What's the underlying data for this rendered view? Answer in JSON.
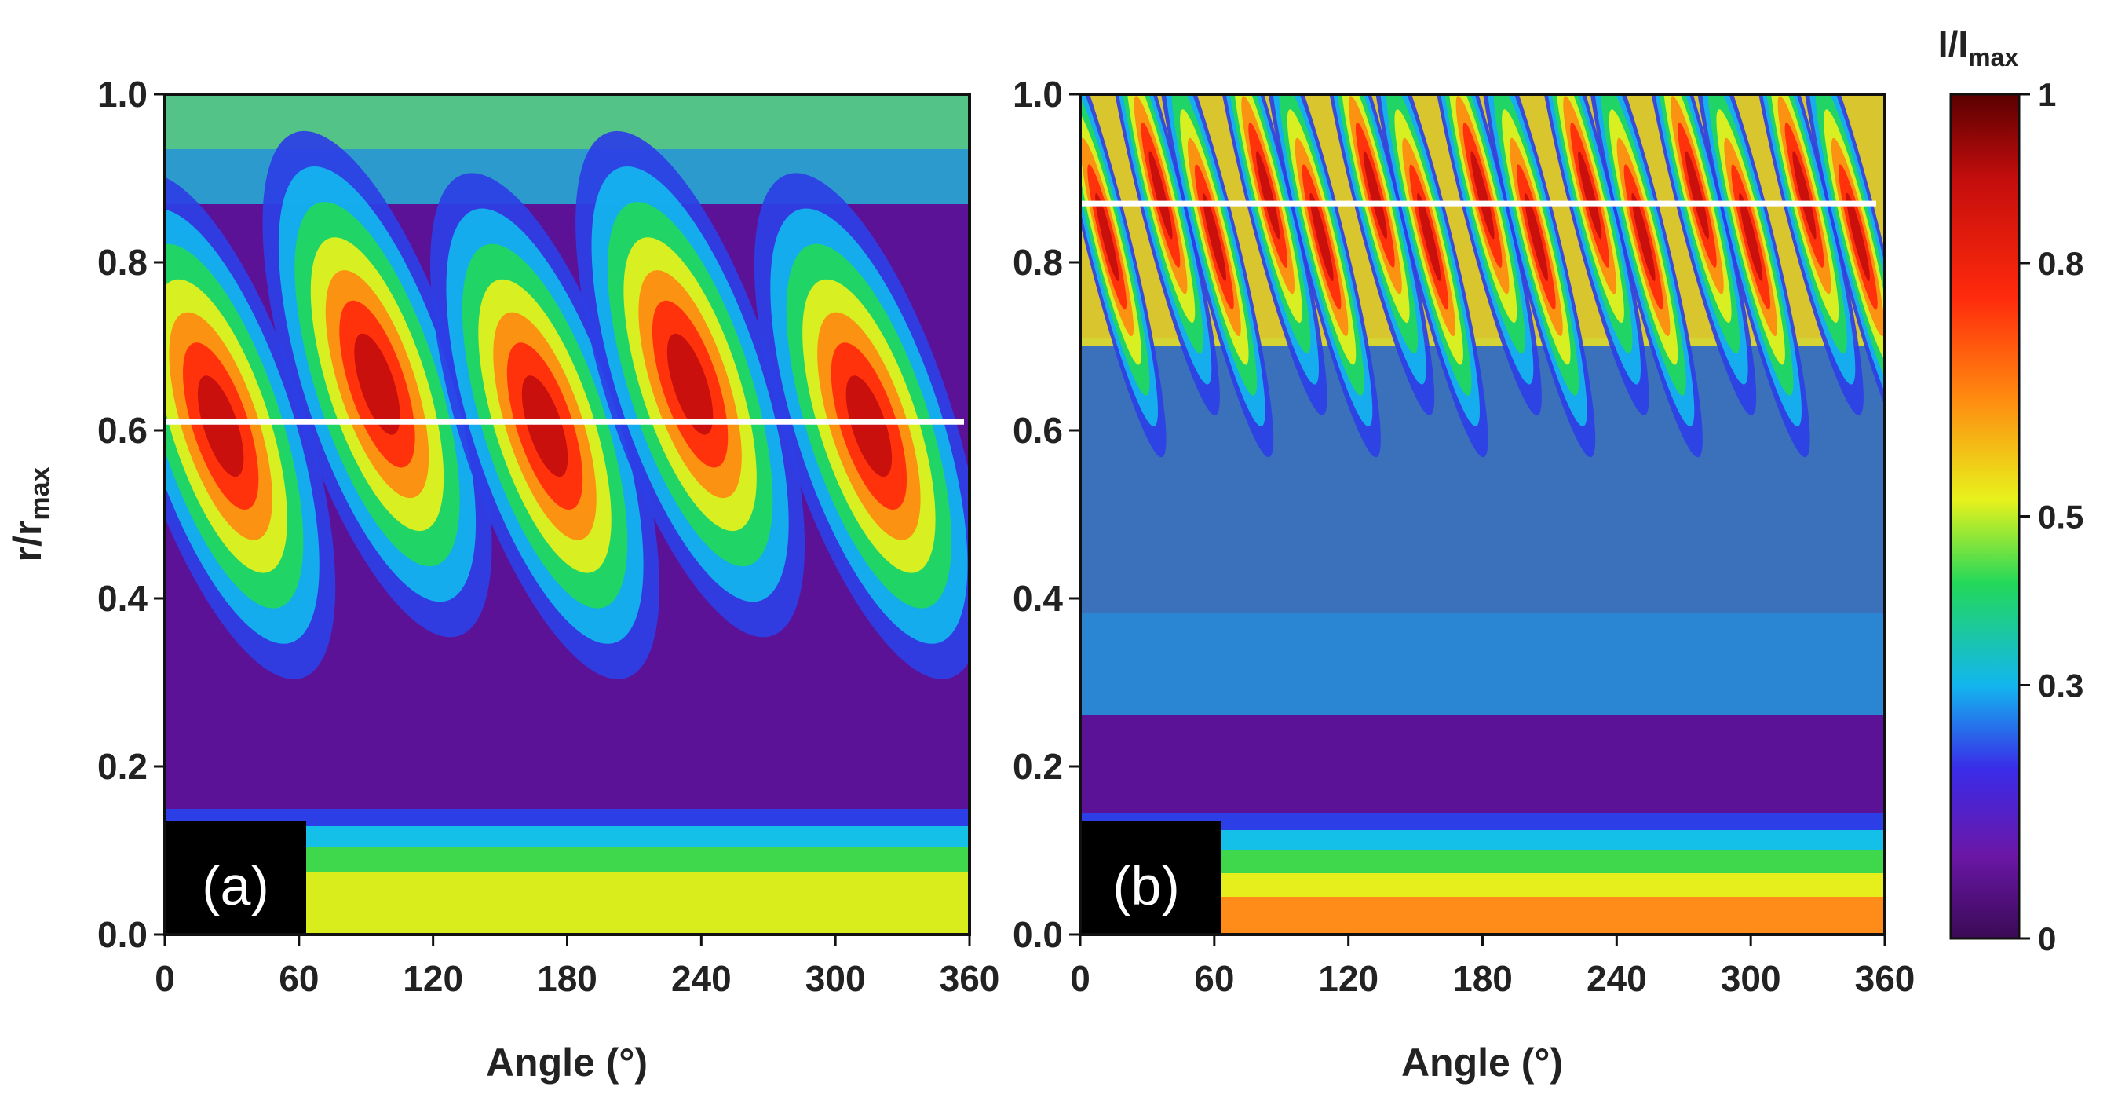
{
  "chart_data": [
    {
      "type": "heatmap",
      "panel_label": "(a)",
      "xlabel": "Angle (°)",
      "ylabel": "r/r",
      "ylabel_subscript": "max",
      "xlim": [
        0,
        360
      ],
      "ylim": [
        0.0,
        1.0
      ],
      "xticks": [
        "0",
        "60",
        "120",
        "180",
        "240",
        "300",
        "360"
      ],
      "yticks": [
        "0.0",
        "0.2",
        "0.4",
        "0.6",
        "0.8",
        "1.0"
      ],
      "reference_line_r": 0.61,
      "low_band_r": [
        0.0,
        0.12
      ],
      "lobe_count": 5,
      "lobe_centers_deg_at_r061": [
        25,
        95,
        170,
        235,
        315
      ],
      "lobe_peak_r_range": [
        0.45,
        0.8
      ],
      "peak_region": "red lobes near r/r max 0.5–0.7"
    },
    {
      "type": "heatmap",
      "panel_label": "(b)",
      "xlabel": "Angle (°)",
      "ylabel": "",
      "xlim": [
        0,
        360
      ],
      "ylim": [
        0.0,
        1.0
      ],
      "xticks": [
        "0",
        "60",
        "120",
        "180",
        "240",
        "300",
        "360"
      ],
      "yticks": [
        "0.0",
        "0.2",
        "0.4",
        "0.6",
        "0.8",
        "1.0"
      ],
      "reference_line_r": 0.87,
      "low_band_r": [
        0.0,
        0.12
      ],
      "lobe_count": 15,
      "lobe_peak_r_range": [
        0.7,
        1.0
      ],
      "peak_region": "dense red stripes near r/r max 0.75–1.0"
    }
  ],
  "colorbar": {
    "title": "I/I",
    "title_subscript": "max",
    "ticks": [
      "0",
      "0.3",
      "0.5",
      "0.8",
      "1"
    ],
    "tick_values": [
      0,
      0.3,
      0.5,
      0.8,
      1.0
    ],
    "colormap": [
      "#3a0a55",
      "#6b17a8",
      "#3a2be8",
      "#13b6ee",
      "#22d85a",
      "#e8f21c",
      "#ff8a10",
      "#ff2a0c",
      "#c40d0d",
      "#5a0000"
    ]
  }
}
